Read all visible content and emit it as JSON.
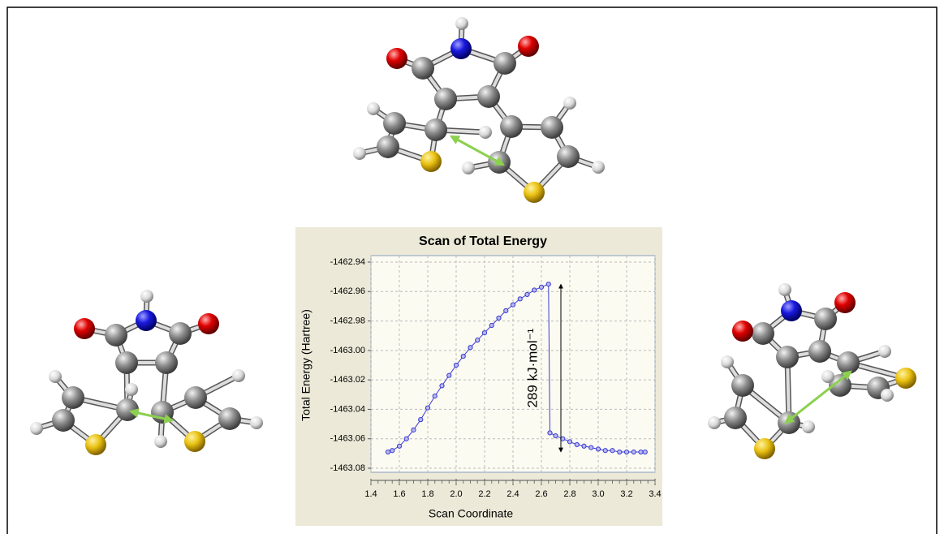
{
  "chart_data": {
    "type": "scatter",
    "title": "Scan of Total Energy",
    "x_label": "Scan Coordinate",
    "y_label": "Total Energy (Hartree)",
    "annotation": "289 kJ·mol⁻¹",
    "x": [
      1.52,
      1.55,
      1.6,
      1.65,
      1.7,
      1.75,
      1.8,
      1.85,
      1.9,
      1.95,
      2.0,
      2.05,
      2.1,
      2.15,
      2.2,
      2.25,
      2.3,
      2.35,
      2.4,
      2.45,
      2.5,
      2.55,
      2.6,
      2.65,
      2.66,
      2.7,
      2.75,
      2.8,
      2.85,
      2.9,
      2.95,
      3.0,
      3.05,
      3.1,
      3.15,
      3.2,
      3.25,
      3.3,
      3.33
    ],
    "series": [
      {
        "color": "#3a3ad0",
        "values": [
          -1463.069,
          -1463.068,
          -1463.065,
          -1463.06,
          -1463.054,
          -1463.047,
          -1463.039,
          -1463.031,
          -1463.024,
          -1463.017,
          -1463.01,
          -1463.004,
          -1462.998,
          -1462.993,
          -1462.988,
          -1462.983,
          -1462.978,
          -1462.973,
          -1462.969,
          -1462.965,
          -1462.962,
          -1462.959,
          -1462.957,
          -1462.955,
          -1463.056,
          -1463.058,
          -1463.06,
          -1463.062,
          -1463.064,
          -1463.065,
          -1463.066,
          -1463.067,
          -1463.068,
          -1463.068,
          -1463.069,
          -1463.069,
          -1463.069,
          -1463.069,
          -1463.069
        ]
      }
    ],
    "xlim": [
      1.4,
      3.4
    ],
    "xticks": [
      1.4,
      1.6,
      1.8,
      {
        "value": 2,
        "label": "2.0"
      },
      2.2,
      2.4,
      2.6,
      2.8,
      {
        "value": 3,
        "label": "3.0"
      },
      3.2,
      3.4
    ],
    "ylim": [
      -1463.08,
      -1462.94
    ],
    "yticks": [
      -1462.94,
      -1462.96,
      -1462.98,
      {
        "value": -1463,
        "label": "-1463.00"
      },
      -1463.02,
      -1463.04,
      -1463.06,
      -1463.08
    ],
    "grid": true
  }
}
